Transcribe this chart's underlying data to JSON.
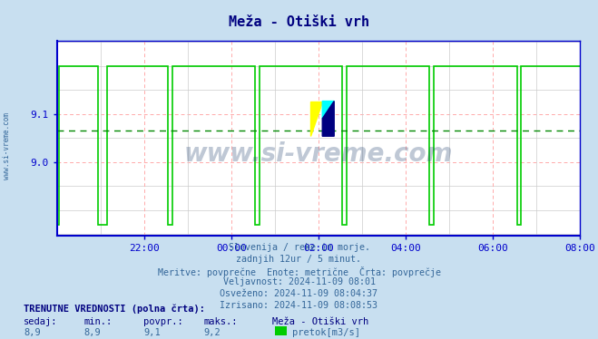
{
  "title": "Meža - Otiški vrh",
  "bg_color": "#c8dff0",
  "plot_bg_color": "#ffffff",
  "line_color": "#00cc00",
  "avg_line_color": "#008800",
  "grid_color_major": "#ffaaaa",
  "grid_color_minor": "#cccccc",
  "axis_color": "#0000cc",
  "text_color": "#336699",
  "title_color": "#000080",
  "watermark": "www.si-vreme.com",
  "watermark_color": "#1a3a6a",
  "subtitle_lines": [
    "Slovenija / reke in morje.",
    "zadnjih 12ur / 5 minut.",
    "Meritve: povprečne  Enote: metrične  Črta: povprečje",
    "Veljavnost: 2024-11-09 08:01",
    "Osveženo: 2024-11-09 08:04:37",
    "Izrisano: 2024-11-09 08:08:53"
  ],
  "bottom_label1": "TRENUTNE VREDNOSTI (polna črta):",
  "bottom_cols": [
    "sedaj:",
    "min.:",
    "povpr.:",
    "maks.:",
    "Meža - Otiški vrh"
  ],
  "bottom_vals": [
    "8,9",
    "8,9",
    "9,1",
    "9,2",
    "pretok[m3/s]"
  ],
  "legend_color": "#00cc00",
  "ylim_min": 8.847,
  "ylim_max": 9.253,
  "yticks": [
    9.0,
    9.1
  ],
  "avg_value": 9.065,
  "x_start_h": 20.0,
  "xtick_hours": [
    22,
    0,
    2,
    4,
    6,
    8
  ],
  "xtick_labels": [
    "22:00",
    "00:00",
    "02:00",
    "04:00",
    "06:00",
    "08:00"
  ],
  "high_val": 9.2,
  "low_val": 8.87
}
